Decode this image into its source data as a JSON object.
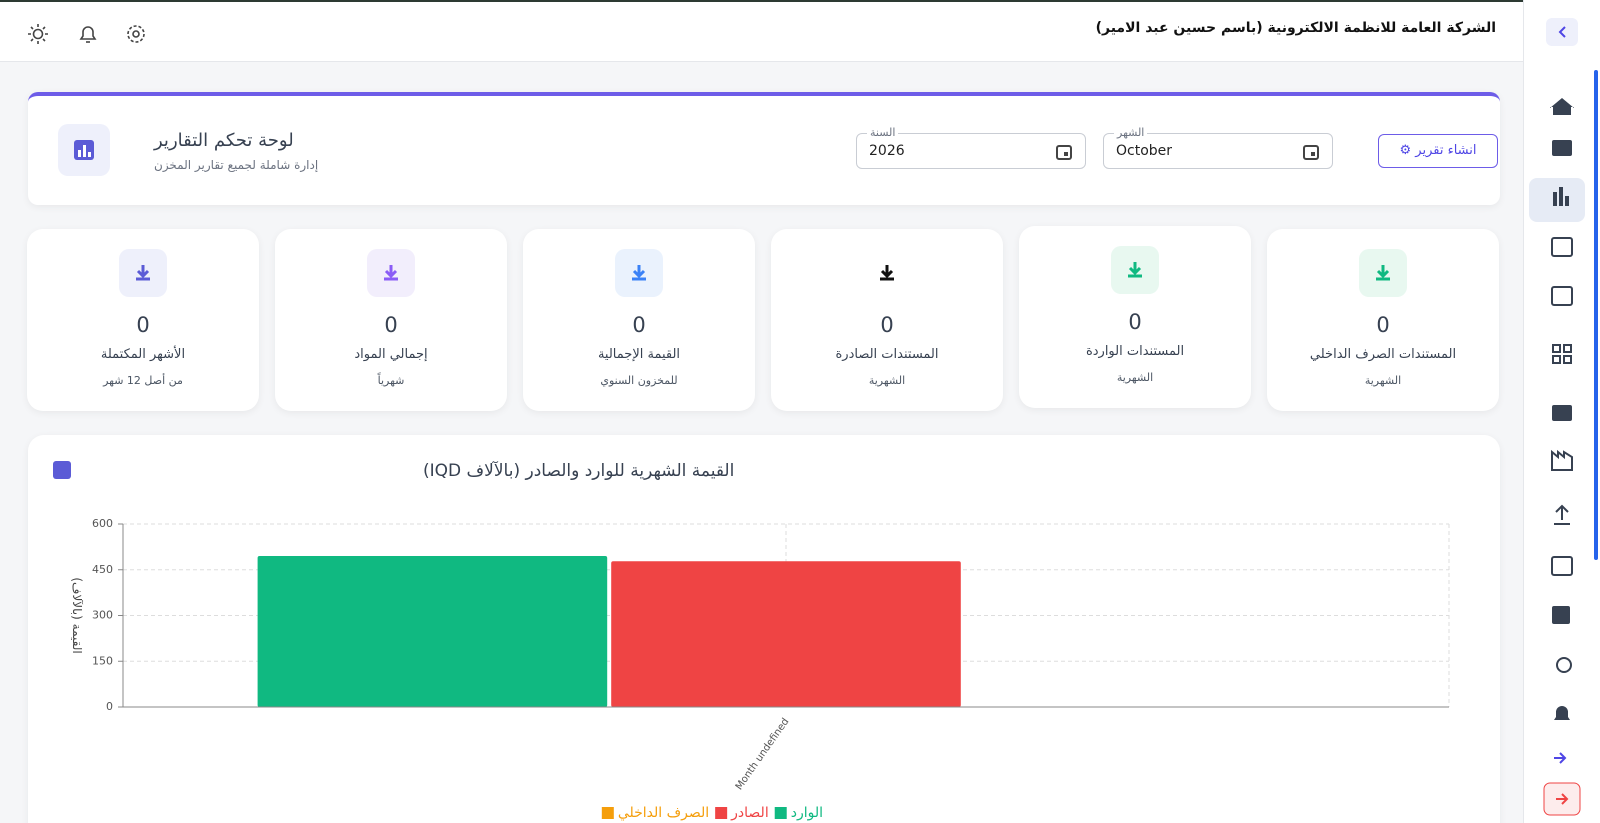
{
  "topbar": {
    "company": "الشركة العامة للانظمة الالكترونية (باسم حسين عبد الامير)"
  },
  "header": {
    "title": "لوحة تحكم التقارير",
    "subtitle": "إدارة شاملة لجميع تقارير المخزن",
    "year_label": "السنة",
    "year_value": 2026,
    "month_label": "الشهر",
    "month_value": "October",
    "button": "انشاء تقرير"
  },
  "cards": [
    {
      "value": 0,
      "label": "المستندات الصرف الداخلي",
      "sub": "الشهرية"
    },
    {
      "value": 0,
      "label": "المستندات الواردة",
      "sub": "الشهرية"
    },
    {
      "value": 0,
      "label": "المستندات الصادرة",
      "sub": "الشهرية"
    },
    {
      "value": 0,
      "label": "القيمة الإجمالية",
      "sub": "للمخزون السنوي"
    },
    {
      "value": 0,
      "label": "إجمالي المواد",
      "sub": "شهرياً"
    },
    {
      "value": 0,
      "label": "الأشهر المكتملة",
      "sub": "من أصل 12 شهر"
    }
  ],
  "chart_data": {
    "type": "bar",
    "title": "القيمة الشهرية للوارد والصادر (بالآلاف IQD)",
    "y_label": "القيمة (بالآلاف)",
    "categories": [
      "Month undefined"
    ],
    "series": [
      {
        "name": "الوارد",
        "color": "#10b981",
        "values": [
          495
        ]
      },
      {
        "name": "الصادر",
        "color": "#ef4444",
        "values": [
          478
        ]
      },
      {
        "name": "الصرف الداخلي",
        "color": "#f59e0b",
        "values": [
          0
        ]
      }
    ],
    "ylim": [
      0,
      600
    ],
    "yticks": [
      0,
      150,
      300,
      450,
      600
    ],
    "grid": true
  }
}
